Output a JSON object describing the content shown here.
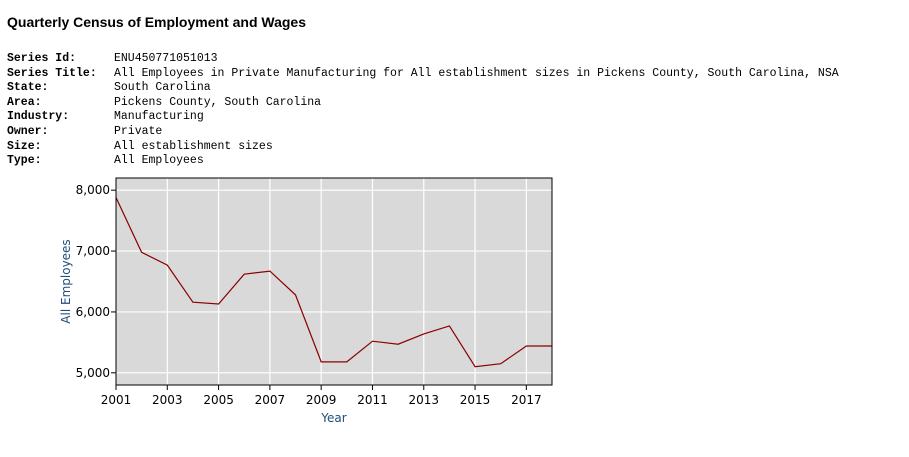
{
  "page": {
    "title": "Quarterly Census of Employment and Wages"
  },
  "series_info": [
    {
      "label": "Series Id:",
      "value": "ENU450771051013"
    },
    {
      "label": "Series Title:",
      "value": "All Employees in Private Manufacturing for All establishment sizes in Pickens County, South Carolina, NSA"
    },
    {
      "label": "State:",
      "value": "South Carolina"
    },
    {
      "label": "Area:",
      "value": "Pickens County, South Carolina"
    },
    {
      "label": "Industry:",
      "value": "Manufacturing"
    },
    {
      "label": "Owner:",
      "value": "Private"
    },
    {
      "label": "Size:",
      "value": "All establishment sizes"
    },
    {
      "label": "Type:",
      "value": "All Employees"
    }
  ],
  "chart_data": {
    "type": "line",
    "title": "",
    "xlabel": "Year",
    "ylabel": "All Employees",
    "x": [
      2001,
      2002,
      2003,
      2004,
      2005,
      2006,
      2007,
      2008,
      2009,
      2010,
      2011,
      2012,
      2013,
      2014,
      2015,
      2016,
      2017,
      2018
    ],
    "series": [
      {
        "values": [
          7880,
          6980,
          6770,
          6160,
          6130,
          6620,
          6670,
          6280,
          5180,
          5180,
          5520,
          5470,
          5640,
          5770,
          5100,
          5150,
          5440,
          5440
        ],
        "color": "#8b0000"
      }
    ],
    "xlim": [
      2001,
      2018
    ],
    "ylim": [
      4800,
      8200
    ],
    "xticks": [
      2001,
      2003,
      2005,
      2007,
      2009,
      2011,
      2013,
      2015,
      2017
    ],
    "xtick_labels": [
      "2001",
      "2003",
      "2005",
      "2007",
      "2009",
      "2011",
      "2013",
      "2015",
      "2017"
    ],
    "yticks": [
      5000,
      6000,
      7000,
      8000
    ],
    "ytick_labels": [
      "5,000",
      "6,000",
      "7,000",
      "8,000"
    ],
    "grid": true,
    "plot_background": "#d9d9d9",
    "grid_color": "#ffffff",
    "axis_title_color": "#1f4e79"
  }
}
